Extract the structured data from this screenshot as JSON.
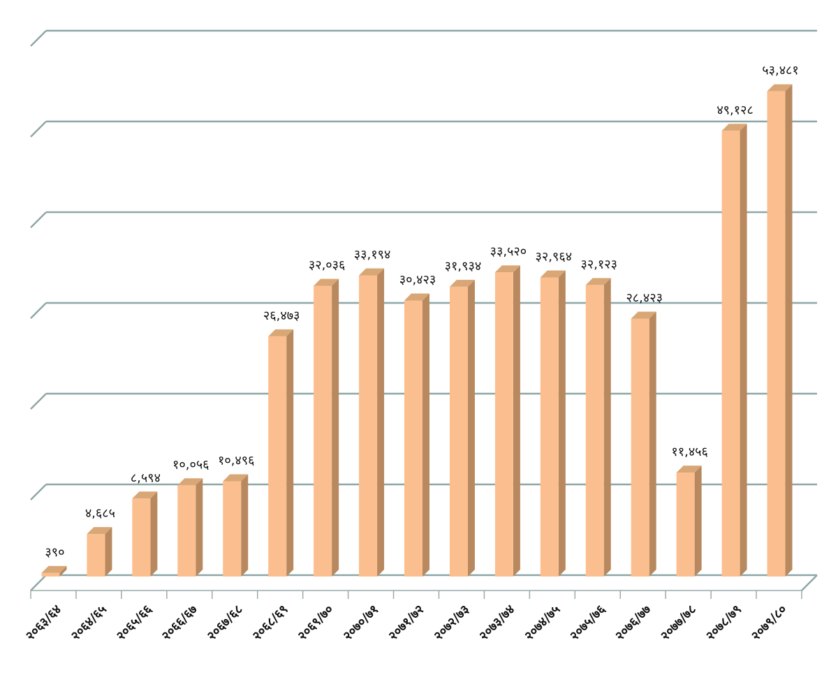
{
  "chart_data": {
    "type": "bar",
    "title": "",
    "xlabel": "",
    "ylabel": "",
    "ylim": [
      0,
      60000
    ],
    "grid": true,
    "legend": "none",
    "bar_color": "#fbbf8f",
    "bar_side_color": "#b8885e",
    "grid_color": "#8ea6a6",
    "categories": [
      "२०६३/६४",
      "२०६४/६५",
      "२०६५/६६",
      "२०६६/६७",
      "२०६७/६८",
      "२०६८/६९",
      "२०६९/७०",
      "२०७०/७१",
      "२०७१/७२",
      "२०७२/७३",
      "२०७३/७४",
      "२०७४/७५",
      "२०७५/७६",
      "२०७६/७७",
      "२०७७/७८",
      "२०७८/७९",
      "२०७९/८०"
    ],
    "values": [
      390,
      4685,
      8594,
      10056,
      10496,
      26473,
      32036,
      33194,
      30423,
      31934,
      33520,
      32964,
      32123,
      28423,
      11456,
      49128,
      53481
    ],
    "value_labels": [
      "३९०",
      "४,६८५",
      "८,५९४",
      "१०,०५६",
      "१०,४९६",
      "२६,४७३",
      "३२,०३६",
      "३३,१९४",
      "३०,४२३",
      "३१,९३४",
      "३३,५२०",
      "३२,९६४",
      "३२,१२३",
      "२८,४२३",
      "११,४५६",
      "४९,१२८",
      "५३,४८१"
    ]
  }
}
